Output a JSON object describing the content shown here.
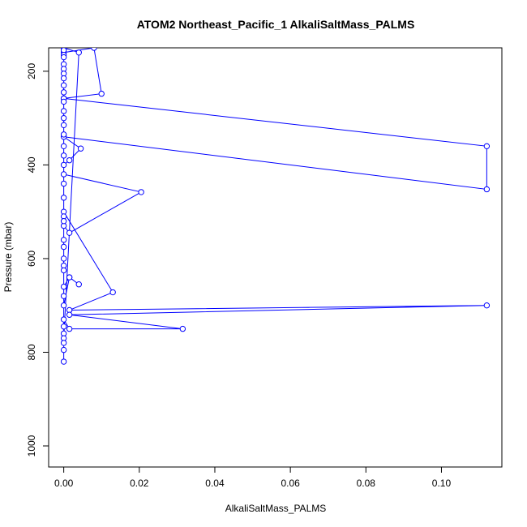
{
  "chart_data": {
    "type": "line",
    "title": "ATOM2 Northeast_Pacific_1 AlkaliSaltMass_PALMS",
    "xlabel": "AlkaliSaltMass_PALMS",
    "ylabel": "Pressure (mbar)",
    "xlim": [
      -0.004,
      0.116
    ],
    "ylim": [
      1045,
      150
    ],
    "y_inverted": true,
    "x_ticks": [
      "0.00",
      "0.02",
      "0.04",
      "0.06",
      "0.08",
      "0.10"
    ],
    "x_tick_values": [
      0,
      0.02,
      0.04,
      0.06,
      0.08,
      0.1
    ],
    "y_ticks": [
      "200",
      "400",
      "600",
      "800",
      "1000"
    ],
    "y_tick_values": [
      200,
      400,
      600,
      800,
      1000
    ],
    "grid": false,
    "line_color": "#0000ff",
    "marker": "open-circle",
    "series": [
      {
        "x": [
          0,
          0,
          0.008,
          0.01,
          0,
          0,
          0.112,
          0.112,
          0,
          0.0045,
          0.0015,
          0,
          0,
          0.0205,
          0.0015,
          0,
          0,
          0.013,
          0.0015,
          0.112,
          0.0015,
          0.0315,
          0.0015,
          0,
          0,
          0.0015,
          0.004,
          0.0015,
          0,
          0,
          0,
          0,
          0,
          0.004,
          0,
          0,
          0,
          0,
          0,
          0,
          0,
          0,
          0,
          0,
          0,
          0,
          0,
          0,
          0,
          0,
          0,
          0,
          0,
          0,
          0,
          0,
          0,
          0,
          0,
          0,
          0,
          0,
          0
        ],
        "y": [
          150,
          160,
          150,
          248,
          258,
          258,
          360,
          452,
          340,
          365,
          390,
          400,
          420,
          458,
          545,
          530,
          500,
          672,
          710,
          700,
          720,
          750,
          750,
          730,
          700,
          640,
          655,
          640,
          660,
          680,
          745,
          760,
          770,
          160,
          150,
          155,
          165,
          170,
          185,
          195,
          205,
          215,
          230,
          245,
          265,
          285,
          300,
          315,
          335,
          360,
          380,
          440,
          470,
          510,
          520,
          560,
          575,
          600,
          615,
          625,
          780,
          795,
          820
        ]
      }
    ]
  }
}
